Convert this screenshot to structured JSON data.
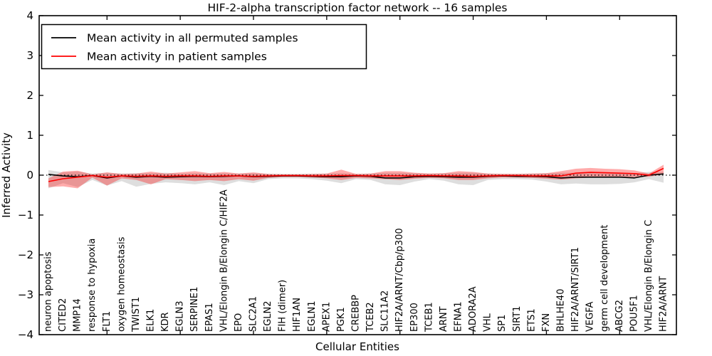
{
  "figure": {
    "title": "HIF-2-alpha transcription factor network -- 16 samples",
    "xlabel": "Cellular Entities",
    "ylabel": "Inferred Activity"
  },
  "legend": {
    "position": "upper left",
    "entries": [
      {
        "label": "Mean activity in all permuted samples",
        "color": "#000000"
      },
      {
        "label": "Mean activity in patient samples",
        "color": "#ff0000"
      }
    ]
  },
  "chart_data": {
    "type": "line",
    "title": "HIF-2-alpha transcription factor network -- 16 samples",
    "xlabel": "Cellular Entities",
    "ylabel": "Inferred Activity",
    "ylim": [
      -4,
      4
    ],
    "yticks": [
      -4,
      -3,
      -2,
      -1,
      0,
      1,
      2,
      3,
      4
    ],
    "xtick_interval": 5,
    "grid": false,
    "legend_position": "upper left",
    "zero_line": {
      "y": 0,
      "style": "dotted",
      "color": "#000000"
    },
    "colors": {
      "permuted_line": "#000000",
      "patient_line": "#ff0000",
      "permuted_band": "#000000",
      "permuted_band_alpha": 0.13,
      "patient_band": "#ff0000",
      "patient_band_alpha": 0.33
    },
    "categories": [
      "neuron apoptosis",
      "CITED2",
      "MMP14",
      "response to hypoxia",
      "FLT1",
      "oxygen homeostasis",
      "TWIST1",
      "ELK1",
      "KDR",
      "EGLN3",
      "SERPINE1",
      "EPAS1",
      "VHL/Elongin B/Elongin C/HIF2A",
      "EPO",
      "SLC2A1",
      "EGLN2",
      "FIH (dimer)",
      "HIF1AN",
      "EGLN1",
      "APEX1",
      "PGK1",
      "CREBBP",
      "TCEB2",
      "SLC11A2",
      "HIF2A/ARNT/Cbp/p300",
      "EP300",
      "TCEB1",
      "ARNT",
      "EFNA1",
      "ADORA2A",
      "VHL",
      "SP1",
      "SIRT1",
      "ETS1",
      "FXN",
      "BHLHE40",
      "HIF2A/ARNT/SIRT1",
      "VEGFA",
      "germ cell development",
      "ABCG2",
      "POU5F1",
      "VHL/Elongin B/Elongin C",
      "HIF2A/ARNT"
    ],
    "series": [
      {
        "name": "Mean activity in all permuted samples",
        "kind": "line",
        "values": [
          0.02,
          -0.02,
          -0.04,
          -0.01,
          -0.07,
          -0.02,
          -0.05,
          -0.03,
          -0.05,
          -0.04,
          -0.03,
          -0.04,
          -0.03,
          -0.02,
          -0.04,
          -0.03,
          -0.02,
          -0.02,
          -0.03,
          -0.04,
          -0.04,
          -0.02,
          -0.03,
          -0.07,
          -0.07,
          -0.04,
          -0.03,
          -0.04,
          -0.05,
          -0.05,
          -0.03,
          -0.02,
          -0.03,
          -0.03,
          -0.04,
          -0.07,
          -0.05,
          -0.05,
          -0.05,
          -0.05,
          -0.07,
          0.0,
          0.03
        ]
      },
      {
        "name": "Mean activity in patient samples",
        "kind": "line",
        "values": [
          -0.16,
          -0.09,
          -0.05,
          -0.01,
          -0.05,
          -0.02,
          -0.03,
          -0.02,
          -0.03,
          -0.02,
          -0.02,
          -0.03,
          -0.02,
          -0.02,
          -0.03,
          -0.02,
          -0.01,
          -0.01,
          -0.02,
          -0.02,
          -0.01,
          -0.01,
          -0.02,
          -0.02,
          -0.02,
          -0.02,
          -0.01,
          -0.02,
          -0.02,
          -0.03,
          -0.02,
          -0.01,
          -0.01,
          -0.02,
          -0.02,
          -0.02,
          0.05,
          0.07,
          0.06,
          0.05,
          0.04,
          0.0,
          0.17
        ]
      },
      {
        "name": "Permuted samples band (mean ± std)",
        "kind": "band",
        "upper": [
          0.13,
          0.07,
          0.09,
          0.04,
          0.06,
          0.04,
          0.05,
          0.05,
          0.06,
          0.04,
          0.05,
          0.04,
          0.05,
          0.04,
          0.05,
          0.03,
          0.03,
          0.03,
          0.03,
          0.04,
          0.05,
          0.03,
          0.04,
          0.06,
          0.06,
          0.05,
          0.04,
          0.05,
          0.06,
          0.06,
          0.04,
          0.03,
          0.03,
          0.04,
          0.05,
          0.06,
          0.06,
          0.06,
          0.06,
          0.06,
          0.05,
          0.08,
          0.08
        ],
        "lower": [
          -0.33,
          -0.2,
          -0.3,
          -0.12,
          -0.26,
          -0.15,
          -0.29,
          -0.22,
          -0.18,
          -0.2,
          -0.23,
          -0.18,
          -0.25,
          -0.15,
          -0.2,
          -0.1,
          -0.08,
          -0.08,
          -0.1,
          -0.14,
          -0.2,
          -0.1,
          -0.12,
          -0.23,
          -0.25,
          -0.16,
          -0.1,
          -0.14,
          -0.23,
          -0.25,
          -0.12,
          -0.1,
          -0.1,
          -0.11,
          -0.16,
          -0.23,
          -0.21,
          -0.23,
          -0.23,
          -0.22,
          -0.18,
          -0.1,
          -0.19
        ]
      },
      {
        "name": "Patient samples band (mean ± std)",
        "kind": "band",
        "upper": [
          -0.08,
          0.09,
          0.11,
          0.02,
          0.07,
          0.03,
          0.04,
          0.09,
          0.04,
          0.07,
          0.1,
          0.05,
          0.08,
          0.04,
          0.07,
          0.03,
          0.02,
          0.02,
          0.03,
          0.04,
          0.14,
          0.03,
          0.04,
          0.1,
          0.1,
          0.06,
          0.04,
          0.05,
          0.1,
          0.08,
          0.04,
          0.03,
          0.03,
          0.04,
          0.05,
          0.1,
          0.16,
          0.18,
          0.16,
          0.15,
          0.12,
          0.04,
          0.26
        ],
        "lower": [
          -0.3,
          -0.28,
          -0.33,
          -0.06,
          -0.26,
          -0.08,
          -0.12,
          -0.23,
          -0.1,
          -0.12,
          -0.15,
          -0.12,
          -0.15,
          -0.1,
          -0.14,
          -0.07,
          -0.05,
          -0.05,
          -0.06,
          -0.08,
          -0.12,
          -0.07,
          -0.08,
          -0.1,
          -0.12,
          -0.09,
          -0.07,
          -0.08,
          -0.12,
          -0.12,
          -0.08,
          -0.06,
          -0.06,
          -0.07,
          -0.09,
          -0.11,
          -0.08,
          -0.06,
          -0.06,
          -0.06,
          -0.05,
          -0.04,
          0.02
        ]
      }
    ]
  }
}
